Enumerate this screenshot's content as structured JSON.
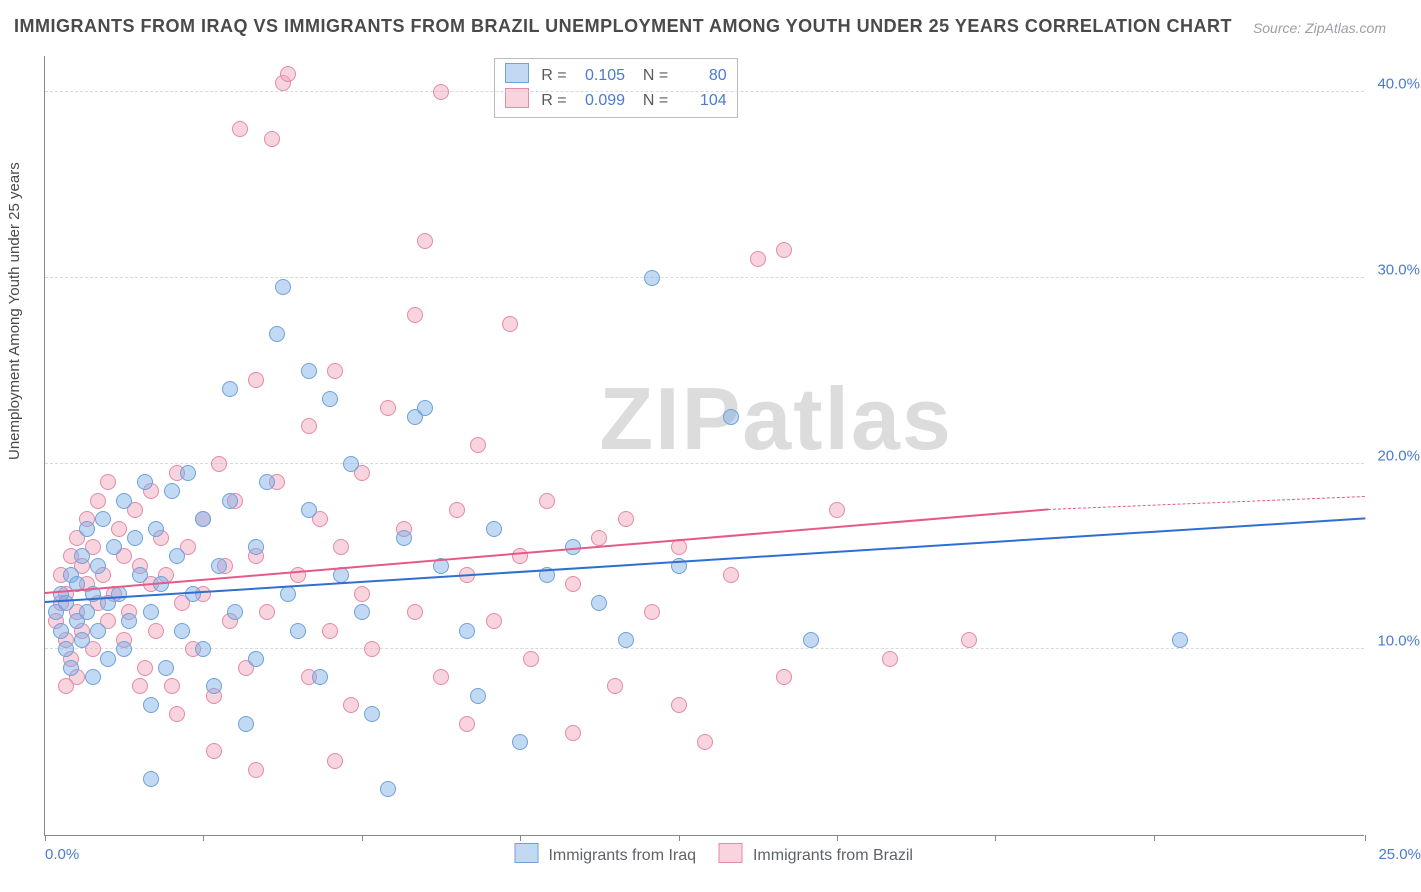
{
  "title": "IMMIGRANTS FROM IRAQ VS IMMIGRANTS FROM BRAZIL UNEMPLOYMENT AMONG YOUTH UNDER 25 YEARS CORRELATION CHART",
  "source": "Source: ZipAtlas.com",
  "ylabel": "Unemployment Among Youth under 25 years",
  "watermark": "ZIPatlas",
  "chart": {
    "type": "scatter",
    "xlim": [
      0,
      25
    ],
    "ylim": [
      0,
      42
    ],
    "xticks": [
      0,
      3,
      6,
      9,
      12,
      15,
      18,
      21,
      25
    ],
    "xtick_labels": {
      "0": "0.0%",
      "25": "25.0%"
    },
    "yticks": [
      10,
      20,
      30,
      40
    ],
    "ytick_labels": {
      "10": "10.0%",
      "20": "20.0%",
      "30": "30.0%",
      "40": "40.0%"
    },
    "grid_color": "#d7dadd",
    "background_color": "#ffffff",
    "marker_radius": 8,
    "marker_border_width": 1.5
  },
  "series": {
    "iraq": {
      "label": "Immigrants from Iraq",
      "fill_color": "rgba(120,170,230,0.45)",
      "stroke_color": "#6fa1da",
      "trend_color": "#2f6fd0",
      "R": "0.105",
      "N": "80",
      "trend": {
        "x1": 0,
        "y1": 12.5,
        "x2": 25,
        "y2": 17.0
      },
      "points": [
        [
          0.2,
          12.0
        ],
        [
          0.3,
          11.0
        ],
        [
          0.3,
          13.0
        ],
        [
          0.4,
          10.0
        ],
        [
          0.4,
          12.5
        ],
        [
          0.5,
          14.0
        ],
        [
          0.5,
          9.0
        ],
        [
          0.6,
          11.5
        ],
        [
          0.6,
          13.5
        ],
        [
          0.7,
          15.0
        ],
        [
          0.7,
          10.5
        ],
        [
          0.8,
          12.0
        ],
        [
          0.8,
          16.5
        ],
        [
          0.9,
          8.5
        ],
        [
          0.9,
          13.0
        ],
        [
          1.0,
          11.0
        ],
        [
          1.0,
          14.5
        ],
        [
          1.1,
          17.0
        ],
        [
          1.2,
          12.5
        ],
        [
          1.2,
          9.5
        ],
        [
          1.3,
          15.5
        ],
        [
          1.4,
          13.0
        ],
        [
          1.5,
          18.0
        ],
        [
          1.5,
          10.0
        ],
        [
          1.6,
          11.5
        ],
        [
          1.7,
          16.0
        ],
        [
          1.8,
          14.0
        ],
        [
          1.9,
          19.0
        ],
        [
          2.0,
          12.0
        ],
        [
          2.0,
          7.0
        ],
        [
          2.1,
          16.5
        ],
        [
          2.2,
          13.5
        ],
        [
          2.3,
          9.0
        ],
        [
          2.4,
          18.5
        ],
        [
          2.5,
          15.0
        ],
        [
          2.6,
          11.0
        ],
        [
          2.7,
          19.5
        ],
        [
          2.8,
          13.0
        ],
        [
          3.0,
          17.0
        ],
        [
          3.0,
          10.0
        ],
        [
          3.2,
          8.0
        ],
        [
          3.3,
          14.5
        ],
        [
          3.5,
          24.0
        ],
        [
          3.5,
          18.0
        ],
        [
          3.6,
          12.0
        ],
        [
          3.8,
          6.0
        ],
        [
          4.0,
          15.5
        ],
        [
          4.0,
          9.5
        ],
        [
          4.2,
          19.0
        ],
        [
          4.4,
          27.0
        ],
        [
          4.5,
          29.5
        ],
        [
          4.6,
          13.0
        ],
        [
          4.8,
          11.0
        ],
        [
          5.0,
          25.0
        ],
        [
          5.0,
          17.5
        ],
        [
          5.2,
          8.5
        ],
        [
          5.4,
          23.5
        ],
        [
          5.6,
          14.0
        ],
        [
          5.8,
          20.0
        ],
        [
          6.0,
          12.0
        ],
        [
          6.2,
          6.5
        ],
        [
          6.5,
          2.5
        ],
        [
          6.8,
          16.0
        ],
        [
          7.0,
          22.5
        ],
        [
          7.2,
          23.0
        ],
        [
          7.5,
          14.5
        ],
        [
          8.0,
          11.0
        ],
        [
          8.2,
          7.5
        ],
        [
          8.5,
          16.5
        ],
        [
          9.0,
          5.0
        ],
        [
          9.5,
          14.0
        ],
        [
          10.0,
          15.5
        ],
        [
          10.5,
          12.5
        ],
        [
          11.0,
          10.5
        ],
        [
          11.5,
          30.0
        ],
        [
          12.0,
          14.5
        ],
        [
          13.0,
          22.5
        ],
        [
          14.5,
          10.5
        ],
        [
          21.5,
          10.5
        ],
        [
          2.0,
          3.0
        ]
      ]
    },
    "brazil": {
      "label": "Immigrants from Brazil",
      "fill_color": "rgba(240,160,185,0.45)",
      "stroke_color": "#e58aa6",
      "trend_color": "#e55a88",
      "R": "0.099",
      "N": "104",
      "trend_solid": {
        "x1": 0,
        "y1": 13.0,
        "x2": 19,
        "y2": 17.5
      },
      "trend_dashed": {
        "x1": 19,
        "y1": 17.5,
        "x2": 25,
        "y2": 18.2
      },
      "points": [
        [
          0.2,
          11.5
        ],
        [
          0.3,
          12.5
        ],
        [
          0.3,
          14.0
        ],
        [
          0.4,
          10.5
        ],
        [
          0.4,
          13.0
        ],
        [
          0.5,
          15.0
        ],
        [
          0.5,
          9.5
        ],
        [
          0.6,
          12.0
        ],
        [
          0.6,
          16.0
        ],
        [
          0.7,
          11.0
        ],
        [
          0.7,
          14.5
        ],
        [
          0.8,
          13.5
        ],
        [
          0.8,
          17.0
        ],
        [
          0.9,
          10.0
        ],
        [
          0.9,
          15.5
        ],
        [
          1.0,
          12.5
        ],
        [
          1.0,
          18.0
        ],
        [
          1.1,
          14.0
        ],
        [
          1.2,
          11.5
        ],
        [
          1.2,
          19.0
        ],
        [
          1.3,
          13.0
        ],
        [
          1.4,
          16.5
        ],
        [
          1.5,
          10.5
        ],
        [
          1.5,
          15.0
        ],
        [
          1.6,
          12.0
        ],
        [
          1.7,
          17.5
        ],
        [
          1.8,
          14.5
        ],
        [
          1.9,
          9.0
        ],
        [
          2.0,
          13.5
        ],
        [
          2.0,
          18.5
        ],
        [
          2.1,
          11.0
        ],
        [
          2.2,
          16.0
        ],
        [
          2.3,
          14.0
        ],
        [
          2.4,
          8.0
        ],
        [
          2.5,
          19.5
        ],
        [
          2.6,
          12.5
        ],
        [
          2.7,
          15.5
        ],
        [
          2.8,
          10.0
        ],
        [
          3.0,
          17.0
        ],
        [
          3.0,
          13.0
        ],
        [
          3.2,
          7.5
        ],
        [
          3.3,
          20.0
        ],
        [
          3.4,
          14.5
        ],
        [
          3.5,
          11.5
        ],
        [
          3.6,
          18.0
        ],
        [
          3.7,
          38.0
        ],
        [
          3.8,
          9.0
        ],
        [
          4.0,
          15.0
        ],
        [
          4.0,
          24.5
        ],
        [
          4.2,
          12.0
        ],
        [
          4.3,
          37.5
        ],
        [
          4.4,
          19.0
        ],
        [
          4.5,
          40.5
        ],
        [
          4.6,
          41.0
        ],
        [
          4.8,
          14.0
        ],
        [
          5.0,
          8.5
        ],
        [
          5.0,
          22.0
        ],
        [
          5.2,
          17.0
        ],
        [
          5.4,
          11.0
        ],
        [
          5.5,
          25.0
        ],
        [
          5.6,
          15.5
        ],
        [
          5.8,
          7.0
        ],
        [
          6.0,
          19.5
        ],
        [
          6.0,
          13.0
        ],
        [
          6.2,
          10.0
        ],
        [
          6.5,
          23.0
        ],
        [
          6.8,
          16.5
        ],
        [
          7.0,
          28.0
        ],
        [
          7.0,
          12.0
        ],
        [
          7.2,
          32.0
        ],
        [
          7.5,
          8.5
        ],
        [
          7.5,
          40.0
        ],
        [
          7.8,
          17.5
        ],
        [
          8.0,
          14.0
        ],
        [
          8.0,
          6.0
        ],
        [
          8.2,
          21.0
        ],
        [
          8.5,
          11.5
        ],
        [
          8.8,
          27.5
        ],
        [
          9.0,
          15.0
        ],
        [
          9.2,
          9.5
        ],
        [
          9.5,
          18.0
        ],
        [
          10.0,
          13.5
        ],
        [
          10.0,
          5.5
        ],
        [
          10.5,
          16.0
        ],
        [
          10.8,
          8.0
        ],
        [
          11.0,
          17.0
        ],
        [
          11.5,
          12.0
        ],
        [
          12.0,
          7.0
        ],
        [
          12.0,
          15.5
        ],
        [
          12.5,
          5.0
        ],
        [
          13.0,
          14.0
        ],
        [
          13.5,
          31.0
        ],
        [
          14.0,
          8.5
        ],
        [
          14.0,
          31.5
        ],
        [
          15.0,
          17.5
        ],
        [
          16.0,
          9.5
        ],
        [
          17.5,
          10.5
        ],
        [
          3.2,
          4.5
        ],
        [
          4.0,
          3.5
        ],
        [
          5.5,
          4.0
        ],
        [
          2.5,
          6.5
        ],
        [
          1.8,
          8.0
        ],
        [
          0.6,
          8.5
        ],
        [
          0.4,
          8.0
        ]
      ]
    }
  },
  "legend_stats": {
    "labels": {
      "R": "R =",
      "N": "N ="
    }
  },
  "legend_bottom": {
    "iraq": "Immigrants from Iraq",
    "brazil": "Immigrants from Brazil"
  }
}
